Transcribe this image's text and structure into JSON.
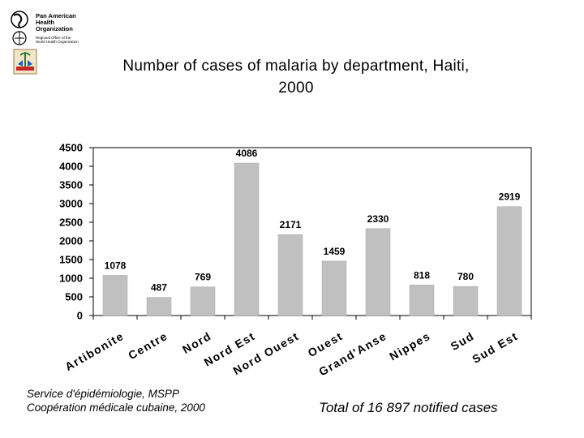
{
  "header": {
    "org_name_lines": [
      "Pan American",
      "Health",
      "Organization"
    ],
    "org_sub_lines": [
      "Regional Office of the",
      "World Health Organization"
    ]
  },
  "title_lines": [
    "Number of cases of malaria by department, Haiti,",
    "2000"
  ],
  "source_lines": [
    "Service d'épidémiologie, MSPP",
    "Coopération médicale cubaine, 2000"
  ],
  "total_note": "Total of 16 897 notified cases",
  "colors": {
    "bar": "#c0c0c0",
    "text": "#000000",
    "axis": "#000000"
  },
  "chart_data": {
    "type": "bar",
    "title": "Number of cases of malaria by department, Haiti, 2000",
    "categories": [
      "Artibonite",
      "Centre",
      "Nord",
      "Nord Est",
      "Nord Ouest",
      "Ouest",
      "Grand'Anse",
      "Nippes",
      "Sud",
      "Sud Est"
    ],
    "values": [
      1078,
      487,
      769,
      4086,
      2171,
      1459,
      2330,
      818,
      780,
      2919
    ],
    "ylim": [
      0,
      4500
    ],
    "yticks": [
      0,
      500,
      1000,
      1500,
      2000,
      2500,
      3000,
      3500,
      4000,
      4500
    ],
    "xlabel": "",
    "ylabel": "",
    "grid": false
  }
}
